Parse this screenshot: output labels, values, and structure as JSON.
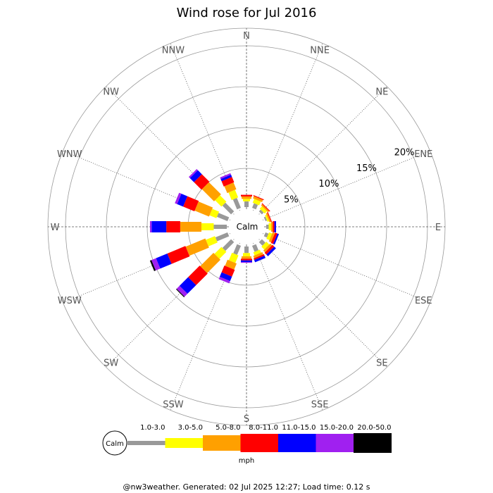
{
  "chart_data": {
    "type": "wind-rose",
    "title": "Wind rose for Jul 2016",
    "center_label": "Calm",
    "unit": "mph",
    "ring_labels": [
      "5%",
      "10%",
      "15%",
      "20%"
    ],
    "rings": [
      5,
      10,
      15,
      20
    ],
    "directions": [
      "N",
      "NNE",
      "NE",
      "ENE",
      "E",
      "ESE",
      "SE",
      "SSE",
      "S",
      "SSW",
      "SW",
      "WSW",
      "W",
      "WNW",
      "NW",
      "NNW"
    ],
    "bins": [
      {
        "name": "1.0-3.0",
        "color": "#999999"
      },
      {
        "name": "3.0-5.0",
        "color": "#ffff00"
      },
      {
        "name": "5.0-8.0",
        "color": "#ffa000"
      },
      {
        "name": "8.0-11.0",
        "color": "#ff0000"
      },
      {
        "name": "11.0-15.0",
        "color": "#0000ff"
      },
      {
        "name": "15.0-20.0",
        "color": "#a020f0"
      },
      {
        "name": "20.0-50.0",
        "color": "#000000"
      }
    ],
    "frequencies": {
      "N": [
        0.7,
        0.3,
        0.3,
        0.2,
        0.0,
        0.0,
        0.0
      ],
      "NNE": [
        0.6,
        0.5,
        0.3,
        0.1,
        0.0,
        0.0,
        0.0
      ],
      "NE": [
        0.3,
        0.4,
        0.2,
        0.1,
        0.0,
        0.0,
        0.0
      ],
      "ENE": [
        0.2,
        0.2,
        0.2,
        0.1,
        0.0,
        0.0,
        0.0
      ],
      "E": [
        0.3,
        0.3,
        0.2,
        0.2,
        0.2,
        0.0,
        0.0
      ],
      "ESE": [
        0.4,
        0.4,
        0.3,
        0.3,
        0.2,
        0.0,
        0.0
      ],
      "SE": [
        0.6,
        0.5,
        0.3,
        0.3,
        0.3,
        0.0,
        0.0
      ],
      "SSE": [
        0.8,
        0.4,
        0.3,
        0.2,
        0.3,
        0.0,
        0.0
      ],
      "S": [
        0.8,
        0.4,
        0.3,
        0.2,
        0.2,
        0.1,
        0.0
      ],
      "SSW": [
        1.2,
        1.0,
        0.8,
        0.9,
        0.6,
        0.3,
        0.0
      ],
      "SW": [
        1.5,
        1.2,
        2.3,
        2.0,
        1.5,
        0.5,
        0.1
      ],
      "WSW": [
        1.6,
        1.2,
        2.6,
        2.4,
        1.5,
        0.6,
        0.2
      ],
      "W": [
        1.6,
        1.5,
        2.6,
        1.7,
        1.8,
        0.2,
        0.0
      ],
      "WNW": [
        1.4,
        0.9,
        1.9,
        1.5,
        0.8,
        0.3,
        0.0
      ],
      "NW": [
        1.5,
        1.1,
        2.1,
        1.3,
        0.7,
        0.2,
        0.0
      ],
      "NNW": [
        1.3,
        1.0,
        0.9,
        0.7,
        0.3,
        0.2,
        0.0
      ]
    },
    "ring_scale_max": 20
  },
  "footer": "@nw3weather. Generated: 02 Jul 2025 12:27; Load time: 0.12 s"
}
